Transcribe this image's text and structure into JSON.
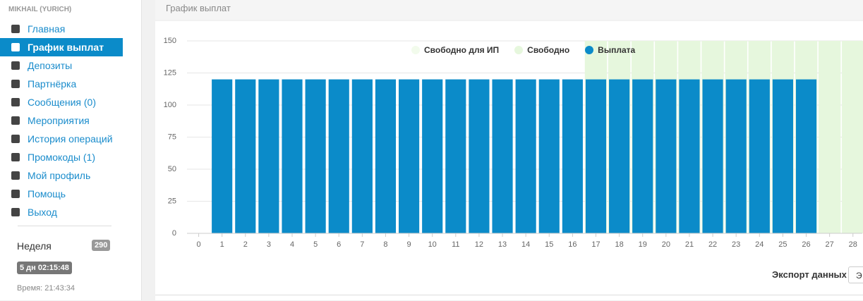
{
  "sidebar": {
    "user": "MIKHAIL (YURICH)",
    "menu": [
      "Главная",
      "График выплат",
      "Депозиты",
      "Партнёрка",
      "Сообщения (0)",
      "Мероприятия",
      "История операций",
      "Промокоды (1)",
      "Мой профиль",
      "Помощь",
      "Выход"
    ],
    "week_label": "Неделя",
    "week_badge": "290",
    "timer": "5 дн 02:15:48",
    "time": "Время: 21:43:34"
  },
  "header": {
    "title": "График выплат"
  },
  "export": {
    "label": "Экспорт данных",
    "button": "Э"
  },
  "chart_data": {
    "type": "bar",
    "x": [
      0,
      1,
      2,
      3,
      4,
      5,
      6,
      7,
      8,
      9,
      10,
      11,
      12,
      13,
      14,
      15,
      16,
      17,
      18,
      19,
      20,
      21,
      22,
      23,
      24,
      25,
      26,
      27,
      28
    ],
    "xlim": [
      -0.5,
      28.4
    ],
    "xticks": [
      0,
      1,
      2,
      3,
      4,
      5,
      6,
      7,
      8,
      9,
      10,
      11,
      12,
      13,
      14,
      15,
      16,
      17,
      18,
      19,
      20,
      21,
      22,
      23,
      24,
      25,
      26,
      27,
      28
    ],
    "ylim": [
      0,
      150
    ],
    "yticks": [
      0,
      25,
      50,
      75,
      100,
      125,
      150
    ],
    "grid": true,
    "legend": "top",
    "series": [
      {
        "name": "Свободно для ИП",
        "color": "#f2fbec",
        "values": [
          null,
          null,
          null,
          null,
          null,
          null,
          null,
          null,
          null,
          null,
          null,
          null,
          null,
          null,
          null,
          null,
          null,
          null,
          null,
          null,
          null,
          null,
          null,
          null,
          null,
          null,
          null,
          null,
          null
        ]
      },
      {
        "name": "Свободно",
        "color": "#e6f7dd",
        "values": [
          null,
          null,
          null,
          null,
          null,
          null,
          null,
          null,
          null,
          null,
          null,
          null,
          null,
          null,
          null,
          null,
          null,
          150,
          150,
          150,
          150,
          150,
          150,
          150,
          150,
          150,
          150,
          150,
          150
        ]
      },
      {
        "name": "Выплата",
        "color": "#0b8bc9",
        "values": [
          null,
          120,
          120,
          120,
          120,
          120,
          120,
          120,
          120,
          120,
          120,
          120,
          120,
          120,
          120,
          120,
          120,
          120,
          120,
          120,
          120,
          120,
          120,
          120,
          120,
          120,
          120,
          null,
          null
        ]
      }
    ]
  }
}
